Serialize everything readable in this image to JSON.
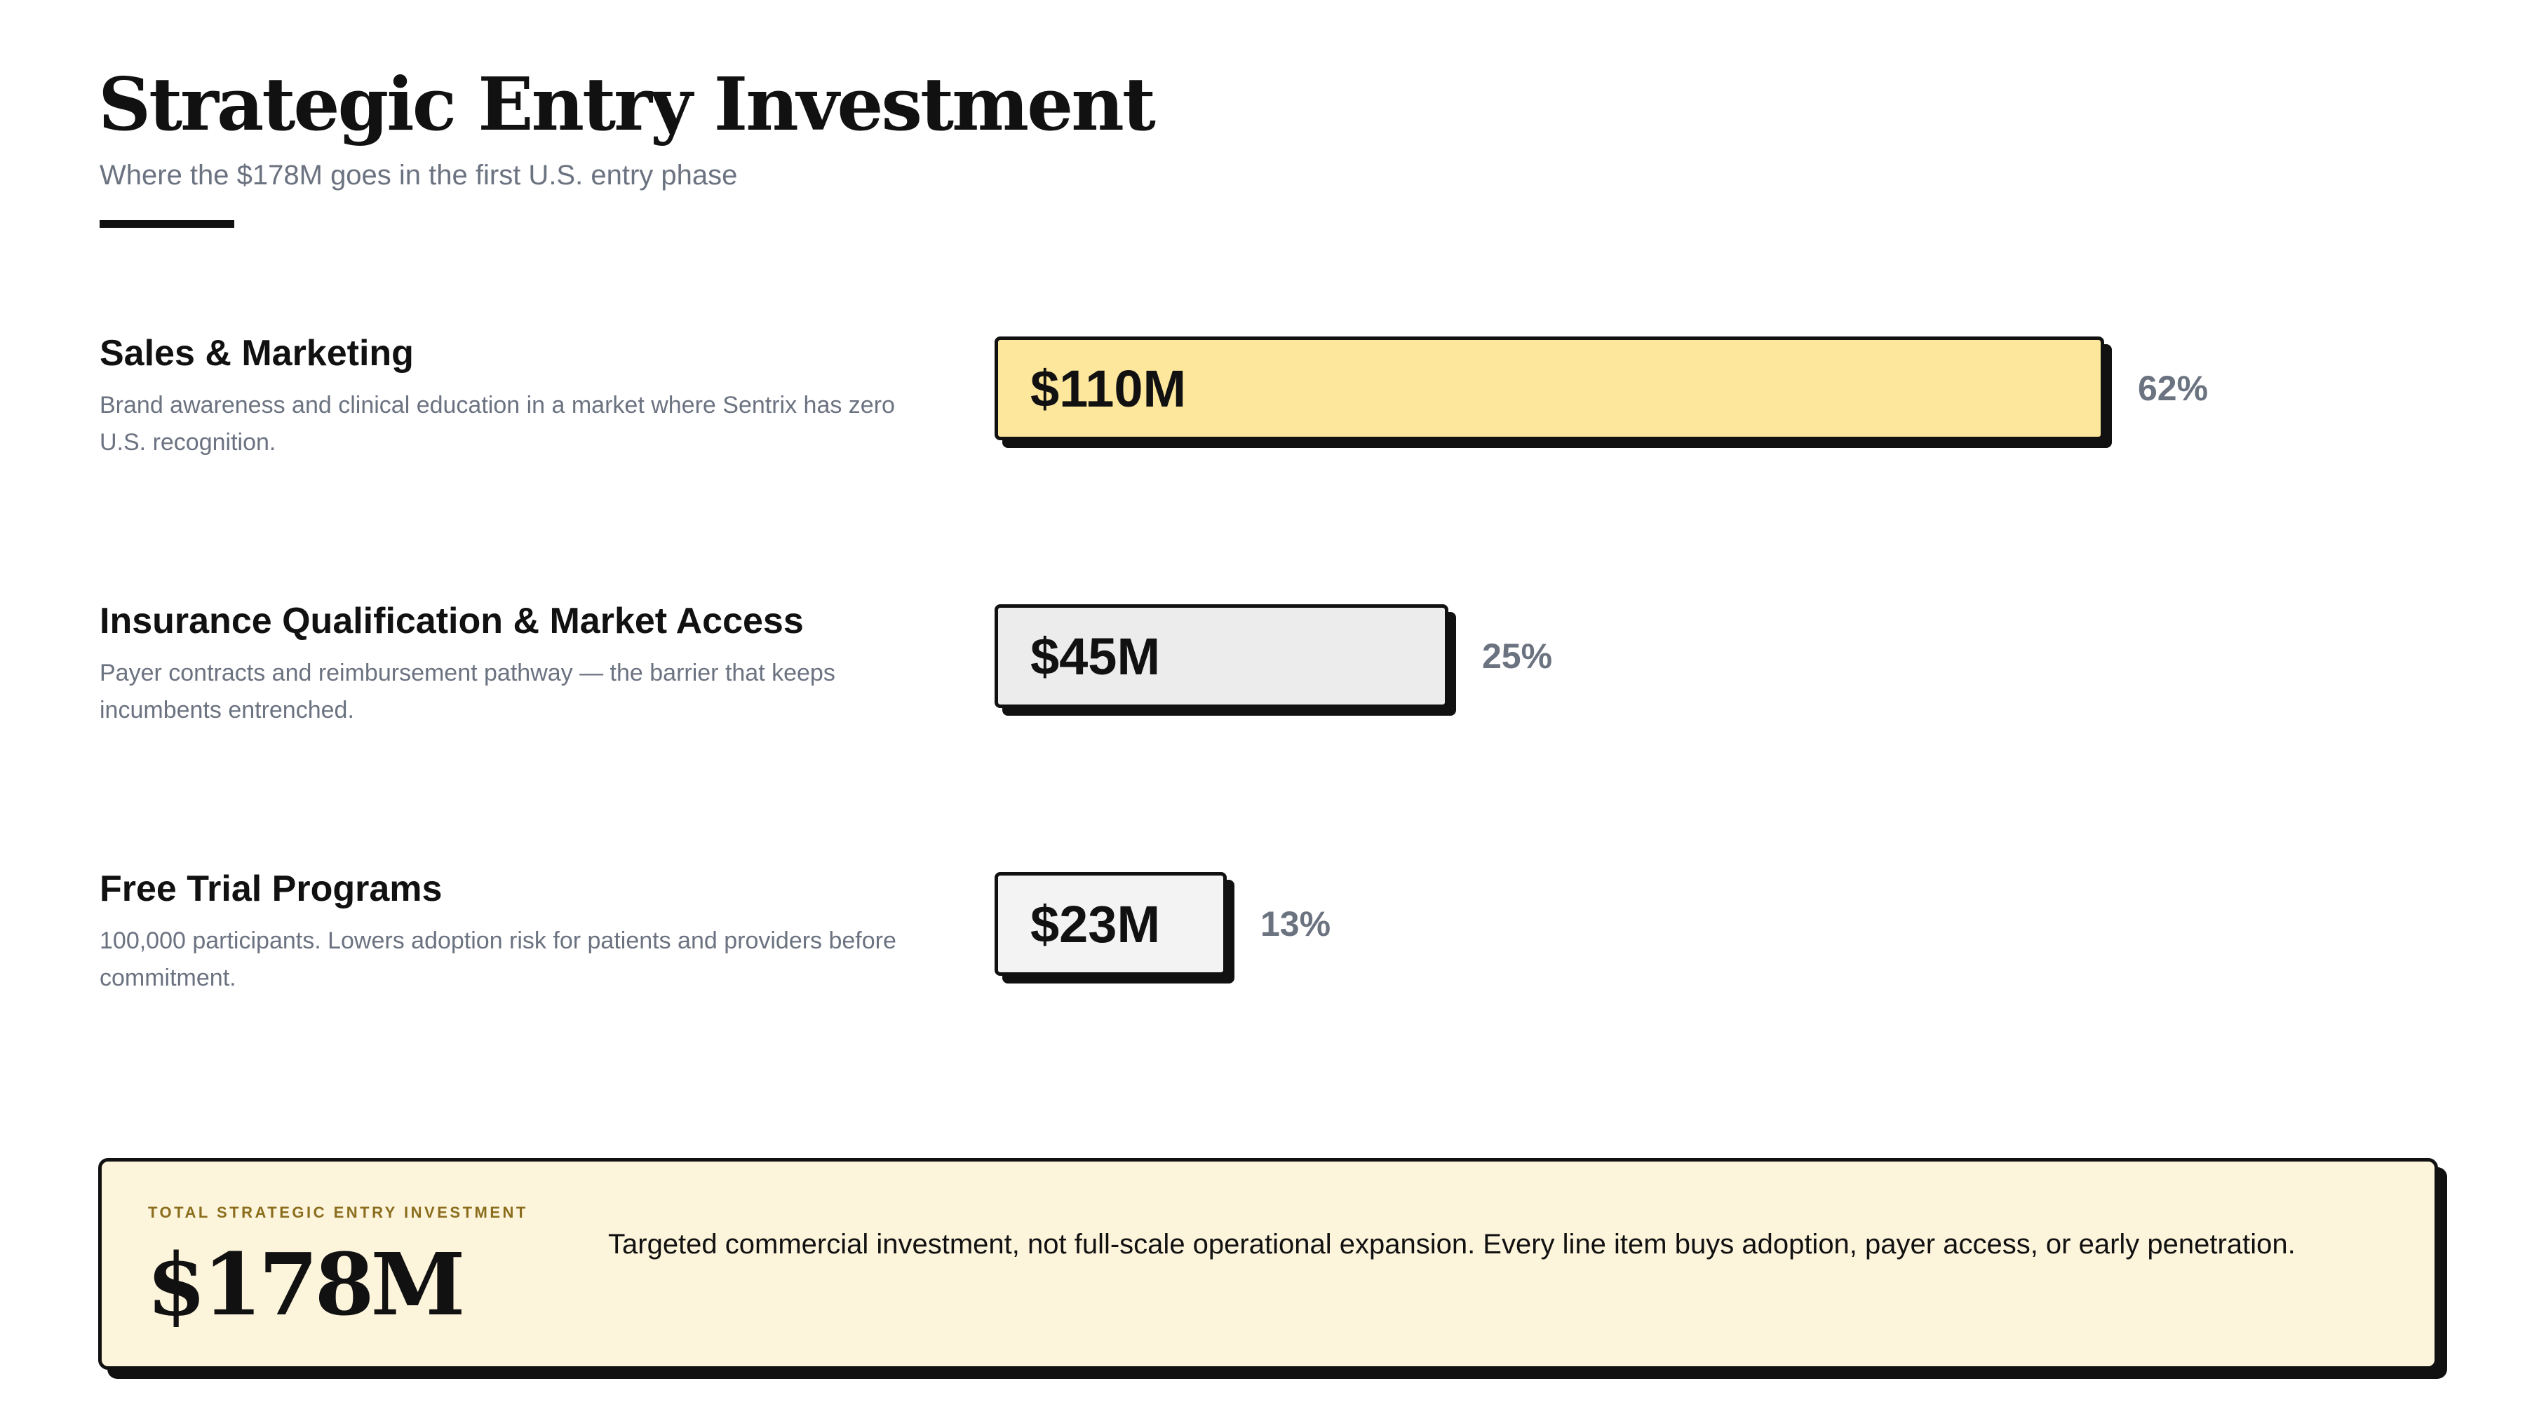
{
  "header": {
    "title": "Strategic Entry Investment",
    "subtitle": "Where the $178M goes in the first U.S. entry phase"
  },
  "chart_data": {
    "type": "bar",
    "orientation": "horizontal",
    "title": "Strategic Entry Investment",
    "subtitle": "Where the $178M goes in the first U.S. entry phase",
    "unit": "$M",
    "categories": [
      "Sales & Marketing",
      "Insurance Qualification & Market Access",
      "Free Trial Programs"
    ],
    "values": [
      110,
      45,
      23
    ],
    "value_labels": [
      "$110M",
      "$45M",
      "$23M"
    ],
    "percents": [
      62,
      25,
      13
    ],
    "percent_labels": [
      "62%",
      "25%",
      "13%"
    ],
    "descriptions": [
      "Brand awareness and clinical education in a market where Sentrix has zero U.S. recognition.",
      "Payer contracts and reimbursement pathway — the barrier that keeps incumbents entrenched.",
      "100,000 participants. Lowers adoption risk for patients and providers before commitment."
    ],
    "colors": [
      "#fde79d",
      "#ececec",
      "#f3f3f3"
    ],
    "grid": false
  },
  "summary": {
    "kicker": "TOTAL STRATEGIC ENTRY INVESTMENT",
    "total": "$178M",
    "note": "Targeted commercial investment, not full-scale operational expansion. Every line item buys adoption, payer access, or early penetration."
  }
}
